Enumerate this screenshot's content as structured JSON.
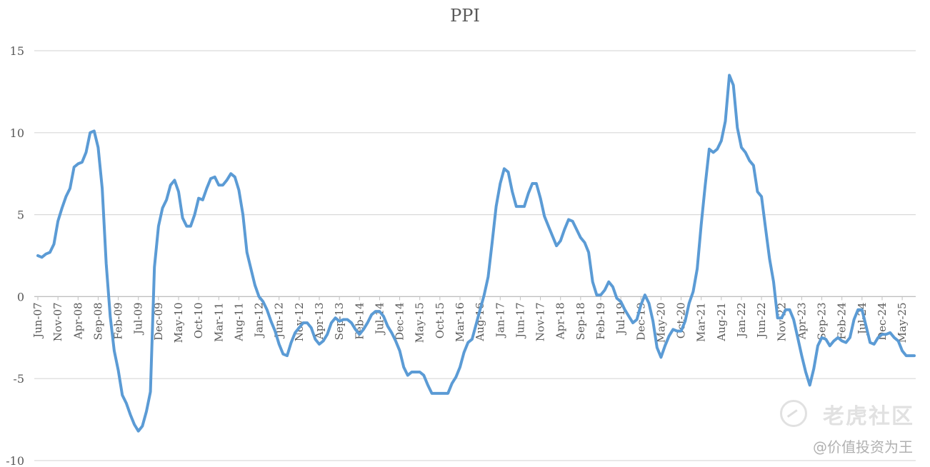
{
  "chart_data": {
    "type": "line",
    "title": "PPI",
    "xlabel": "",
    "ylabel": "",
    "ylim": [
      -10,
      15
    ],
    "yticks": [
      -10,
      -5,
      0,
      5,
      10,
      15
    ],
    "grid": true,
    "line_color": "#5B9BD5",
    "x_tick_labels": [
      "Jun-07",
      "Nov-07",
      "Apr-08",
      "Sep-08",
      "Feb-09",
      "Jul-09",
      "Dec-09",
      "May-10",
      "Oct-10",
      "Mar-11",
      "Aug-11",
      "Jan-12",
      "Jun-12",
      "Nov-12",
      "Apr-13",
      "Sep-13",
      "Feb-14",
      "Jul-14",
      "Dec-14",
      "May-15",
      "Oct-15",
      "Mar-16",
      "Aug-16",
      "Jan-17",
      "Jun-17",
      "Nov-17",
      "Apr-18",
      "Sep-18",
      "Feb-19",
      "Jul-19",
      "Dec-19",
      "May-20",
      "Oct-20",
      "Mar-21",
      "Aug-21",
      "Jan-22",
      "Jun-22",
      "Nov-22",
      "Apr-23",
      "Sep-23",
      "Feb-24",
      "Jul-24",
      "Dec-24",
      "May-25"
    ],
    "start": "Jun-07",
    "end": "Aug-25",
    "series": [
      {
        "name": "",
        "values": [
          2.5,
          2.4,
          2.6,
          2.7,
          3.2,
          4.6,
          5.4,
          6.1,
          6.6,
          7.9,
          8.1,
          8.2,
          8.8,
          10.0,
          10.1,
          9.1,
          6.6,
          2.0,
          -1.2,
          -3.3,
          -4.5,
          -6.0,
          -6.5,
          -7.2,
          -7.8,
          -8.2,
          -7.9,
          -7.0,
          -5.8,
          1.8,
          4.3,
          5.4,
          5.9,
          6.8,
          7.1,
          6.4,
          4.8,
          4.3,
          4.3,
          5.0,
          6.0,
          5.9,
          6.6,
          7.2,
          7.3,
          6.8,
          6.8,
          7.1,
          7.5,
          7.3,
          6.5,
          5.0,
          2.7,
          1.7,
          0.7,
          0.0,
          -0.3,
          -0.8,
          -1.5,
          -2.1,
          -2.9,
          -3.5,
          -3.6,
          -2.8,
          -2.2,
          -1.9,
          -1.6,
          -1.6,
          -1.9,
          -2.6,
          -2.9,
          -2.7,
          -2.3,
          -1.6,
          -1.3,
          -1.5,
          -1.4,
          -1.4,
          -1.6,
          -2.0,
          -2.3,
          -2.0,
          -1.6,
          -1.1,
          -0.9,
          -0.9,
          -1.2,
          -1.8,
          -2.2,
          -2.7,
          -3.3,
          -4.3,
          -4.8,
          -4.6,
          -4.6,
          -4.6,
          -4.8,
          -5.4,
          -5.9,
          -5.9,
          -5.9,
          -5.9,
          -5.9,
          -5.3,
          -4.9,
          -4.3,
          -3.4,
          -2.8,
          -2.6,
          -1.7,
          -0.8,
          0.1,
          1.2,
          3.3,
          5.5,
          6.9,
          7.8,
          7.6,
          6.4,
          5.5,
          5.5,
          5.5,
          6.3,
          6.9,
          6.9,
          6.0,
          4.9,
          4.3,
          3.7,
          3.1,
          3.4,
          4.1,
          4.7,
          4.6,
          4.1,
          3.6,
          3.3,
          2.7,
          0.9,
          0.1,
          0.1,
          0.4,
          0.9,
          0.6,
          -0.1,
          -0.3,
          -0.8,
          -1.2,
          -1.6,
          -1.4,
          -0.5,
          0.1,
          -0.4,
          -1.5,
          -3.1,
          -3.7,
          -3.0,
          -2.4,
          -2.0,
          -2.1,
          -2.1,
          -1.5,
          -0.4,
          0.3,
          1.7,
          4.4,
          6.8,
          9.0,
          8.8,
          9.0,
          9.5,
          10.7,
          13.5,
          12.9,
          10.3,
          9.1,
          8.8,
          8.3,
          8.0,
          6.4,
          6.1,
          4.2,
          2.3,
          0.9,
          -1.3,
          -1.3,
          -0.8,
          -0.8,
          -1.4,
          -2.5,
          -3.6,
          -4.6,
          -5.4,
          -4.4,
          -3.0,
          -2.5,
          -2.6,
          -3.0,
          -2.7,
          -2.5,
          -2.7,
          -2.8,
          -2.5,
          -1.4,
          -0.8,
          -0.8,
          -1.8,
          -2.8,
          -2.9,
          -2.5,
          -2.3,
          -2.3,
          -2.2,
          -2.5,
          -2.7,
          -3.3,
          -3.6,
          -3.6,
          -3.6
        ]
      }
    ]
  },
  "watermark": {
    "brand": "老虎社区",
    "user": "@价值投资为王"
  }
}
